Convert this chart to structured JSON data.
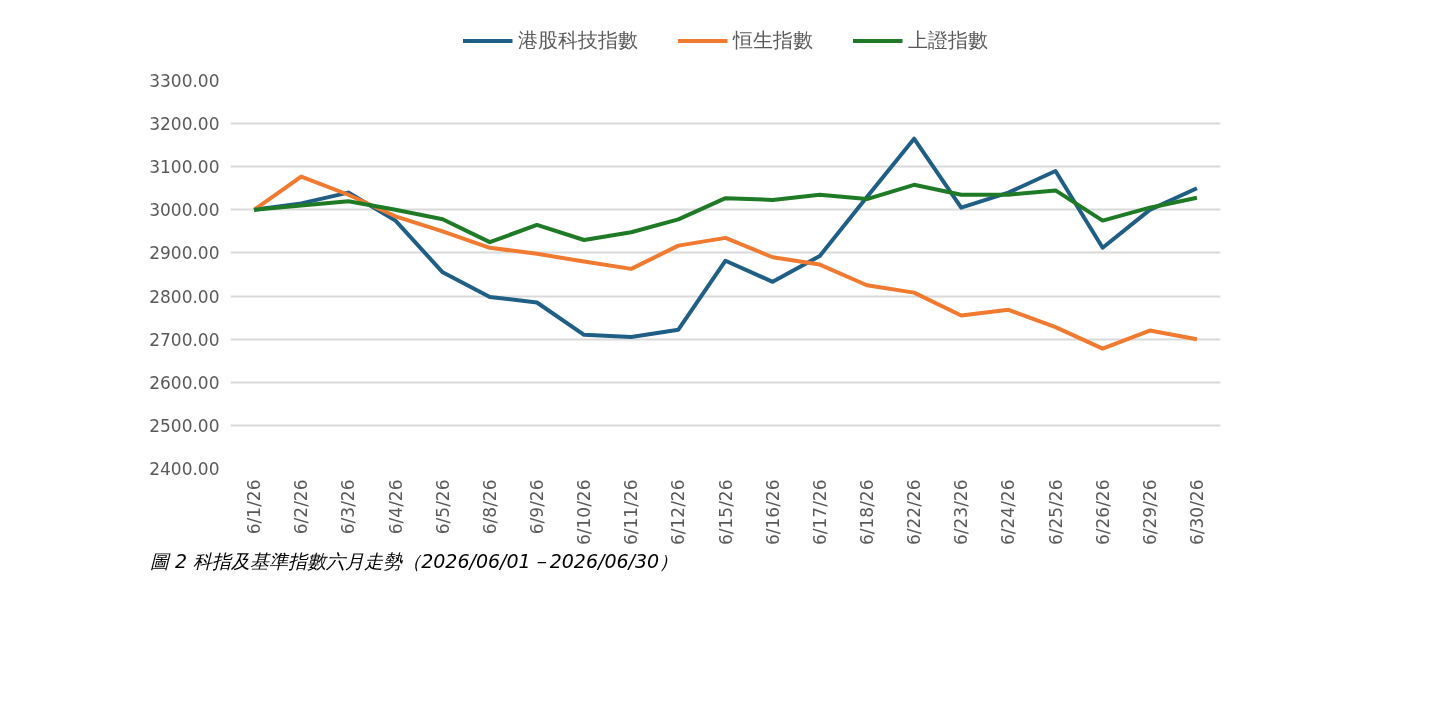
{
  "chart_data": {
    "type": "line",
    "categories": [
      "6/1/26",
      "6/2/26",
      "6/3/26",
      "6/4/26",
      "6/5/26",
      "6/8/26",
      "6/9/26",
      "6/10/26",
      "6/11/26",
      "6/12/26",
      "6/15/26",
      "6/16/26",
      "6/17/26",
      "6/18/26",
      "6/22/26",
      "6/23/26",
      "6/24/26",
      "6/25/26",
      "6/26/26",
      "6/29/26",
      "6/30/26"
    ],
    "series": [
      {
        "name": "港股科技指數",
        "color": "#1f5f86",
        "values": [
          3000,
          3015,
          3040,
          2975,
          2855,
          2798,
          2785,
          2710,
          2705,
          2722,
          2882,
          2833,
          2893,
          3030,
          3165,
          3005,
          3040,
          3090,
          2912,
          3000,
          3050
        ]
      },
      {
        "name": "恒生指數",
        "color": "#f07a30",
        "values": [
          3000,
          3077,
          3035,
          2985,
          2950,
          2912,
          2898,
          2880,
          2863,
          2917,
          2935,
          2890,
          2873,
          2825,
          2808,
          2755,
          2768,
          2728,
          2678,
          2720,
          2700
        ]
      },
      {
        "name": "上證指數",
        "color": "#1e7a25",
        "values": [
          3000,
          3010,
          3020,
          3000,
          2978,
          2925,
          2965,
          2930,
          2948,
          2978,
          3027,
          3023,
          3035,
          3025,
          3058,
          3035,
          3035,
          3045,
          2975,
          3005,
          3028
        ]
      }
    ],
    "ylim": [
      2400,
      3300
    ],
    "yticks": [
      {
        "value": 2400,
        "label": "2400.00"
      },
      {
        "value": 2500,
        "label": "2500.00"
      },
      {
        "value": 2600,
        "label": "2600.00"
      },
      {
        "value": 2700,
        "label": "2700.00"
      },
      {
        "value": 2800,
        "label": "2800.00"
      },
      {
        "value": 2900,
        "label": "2900.00"
      },
      {
        "value": 3000,
        "label": "3000.00"
      },
      {
        "value": 3100,
        "label": "3100.00"
      },
      {
        "value": 3200,
        "label": "3200.00"
      },
      {
        "value": 3300,
        "label": "3300.00"
      }
    ],
    "grid": "y",
    "legend": "top",
    "marker": "none",
    "line_style": "solid",
    "annotations": [
      "圖 2 科指及基準指數六月走勢（2026/06/01－2026/06/30）"
    ]
  }
}
